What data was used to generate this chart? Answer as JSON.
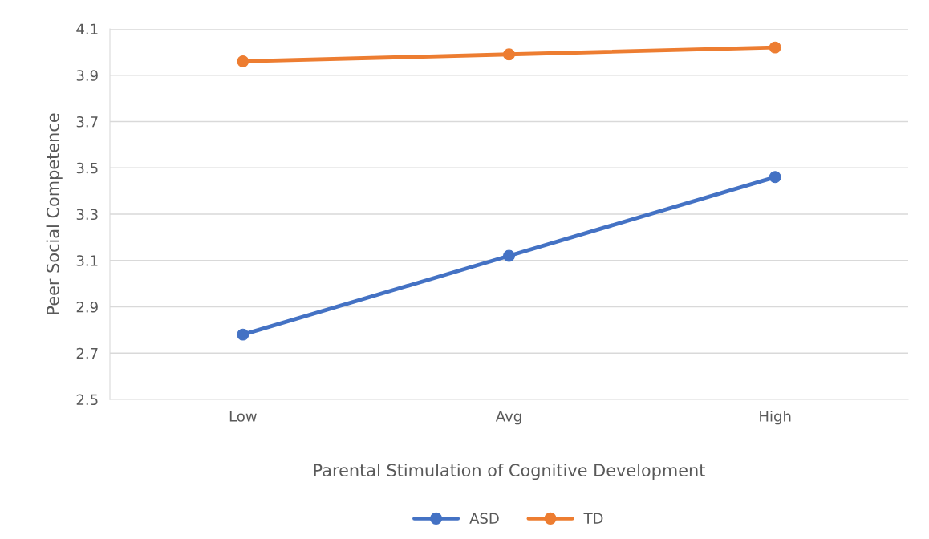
{
  "chart_data": {
    "type": "line",
    "xlabel": "Parental Stimulation of Cognitive Development",
    "ylabel": "Peer Social Competence",
    "categories": [
      "Low",
      "Avg",
      "High"
    ],
    "series": [
      {
        "name": "ASD",
        "color": "#4472c4",
        "values": [
          2.78,
          3.12,
          3.46
        ]
      },
      {
        "name": "TD",
        "color": "#ed7d31",
        "values": [
          3.96,
          3.99,
          4.02
        ]
      }
    ],
    "ylim": [
      2.5,
      4.1
    ],
    "yticks": [
      2.5,
      2.7,
      2.9,
      3.1,
      3.3,
      3.5,
      3.7,
      3.9,
      4.1
    ],
    "grid": "y",
    "legend": "bottom",
    "marker": "circle",
    "line_style": "solid"
  }
}
